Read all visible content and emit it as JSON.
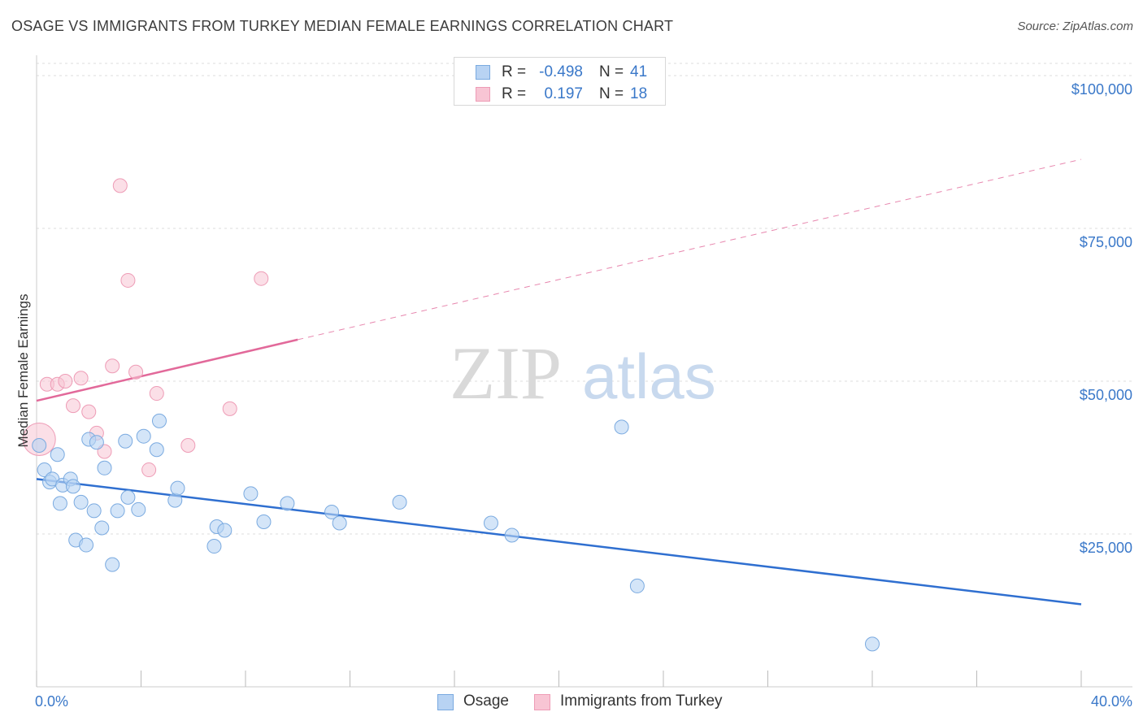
{
  "title": "OSAGE VS IMMIGRANTS FROM TURKEY MEDIAN FEMALE EARNINGS CORRELATION CHART",
  "source": "Source: ZipAtlas.com",
  "watermark": {
    "zip": "ZIP",
    "atlas": "atlas"
  },
  "legend": {
    "rows": [
      {
        "r_label": "R =",
        "r_value": "-0.498",
        "n_label": "N =",
        "n_value": "41"
      },
      {
        "r_label": "R =",
        "r_value": "0.197",
        "n_label": "N =",
        "n_value": "18"
      }
    ]
  },
  "bottom_legend": {
    "series1": "Osage",
    "series2": "Immigrants from Turkey"
  },
  "chart_data": {
    "type": "scatter",
    "ylabel": "Median Female Earnings",
    "x_tick_labels": {
      "min": "0.0%",
      "max": "40.0%"
    },
    "y_tick_labels": [
      "$25,000",
      "$50,000",
      "$75,000",
      "$100,000"
    ],
    "y_ticks": [
      25000,
      50000,
      75000,
      100000
    ],
    "xlim": [
      0,
      40
    ],
    "ylim": [
      0,
      102000
    ],
    "grid": true,
    "colors": {
      "osage_fill": "#b8d3f3",
      "osage_stroke": "#7aaae0",
      "osage_line": "#2f6fd0",
      "turkey_fill": "#f8c5d4",
      "turkey_stroke": "#ee9cb6",
      "turkey_line": "#e2699a",
      "tick_text": "#3a78c9"
    },
    "series": [
      {
        "name": "Osage",
        "points": [
          [
            0.1,
            39.5
          ],
          [
            0.3,
            35.5
          ],
          [
            0.5,
            33.5
          ],
          [
            0.6,
            34.0
          ],
          [
            0.8,
            38.0
          ],
          [
            0.9,
            30.0
          ],
          [
            1.0,
            33.0
          ],
          [
            1.3,
            34.0
          ],
          [
            1.4,
            32.8
          ],
          [
            1.5,
            24.0
          ],
          [
            1.7,
            30.2
          ],
          [
            1.9,
            23.2
          ],
          [
            2.0,
            40.5
          ],
          [
            2.2,
            28.8
          ],
          [
            2.3,
            40.0
          ],
          [
            2.5,
            26.0
          ],
          [
            2.6,
            35.8
          ],
          [
            2.9,
            20.0
          ],
          [
            3.1,
            28.8
          ],
          [
            3.4,
            40.2
          ],
          [
            3.5,
            31.0
          ],
          [
            3.9,
            29.0
          ],
          [
            4.1,
            41.0
          ],
          [
            4.6,
            38.8
          ],
          [
            4.7,
            43.5
          ],
          [
            5.3,
            30.5
          ],
          [
            5.4,
            32.5
          ],
          [
            6.8,
            23.0
          ],
          [
            6.9,
            26.2
          ],
          [
            7.2,
            25.6
          ],
          [
            8.2,
            31.6
          ],
          [
            8.7,
            27.0
          ],
          [
            9.6,
            30.0
          ],
          [
            11.3,
            28.6
          ],
          [
            11.6,
            26.8
          ],
          [
            13.9,
            30.2
          ],
          [
            17.4,
            26.8
          ],
          [
            18.2,
            24.8
          ],
          [
            22.4,
            42.5
          ],
          [
            23.0,
            16.5
          ],
          [
            32.0,
            7.0
          ]
        ],
        "trend": {
          "x": [
            0,
            40
          ],
          "y": [
            34.0,
            13.5
          ]
        }
      },
      {
        "name": "Immigrants from Turkey",
        "points": [
          [
            0.1,
            40.5
          ],
          [
            0.4,
            49.5
          ],
          [
            0.8,
            49.5
          ],
          [
            1.1,
            50.0
          ],
          [
            1.4,
            46.0
          ],
          [
            1.7,
            50.5
          ],
          [
            2.0,
            45.0
          ],
          [
            2.3,
            41.5
          ],
          [
            2.6,
            38.5
          ],
          [
            2.9,
            52.5
          ],
          [
            3.2,
            82.0
          ],
          [
            3.5,
            66.5
          ],
          [
            3.8,
            51.5
          ],
          [
            4.3,
            35.5
          ],
          [
            4.6,
            48.0
          ],
          [
            5.8,
            39.5
          ],
          [
            7.4,
            45.5
          ],
          [
            8.6,
            66.8
          ]
        ],
        "trend": {
          "x": [
            0,
            10
          ],
          "y": [
            46.8,
            56.8
          ]
        },
        "trend_dashed": {
          "x": [
            10,
            40
          ],
          "y": [
            56.8,
            86.3
          ]
        }
      }
    ]
  }
}
